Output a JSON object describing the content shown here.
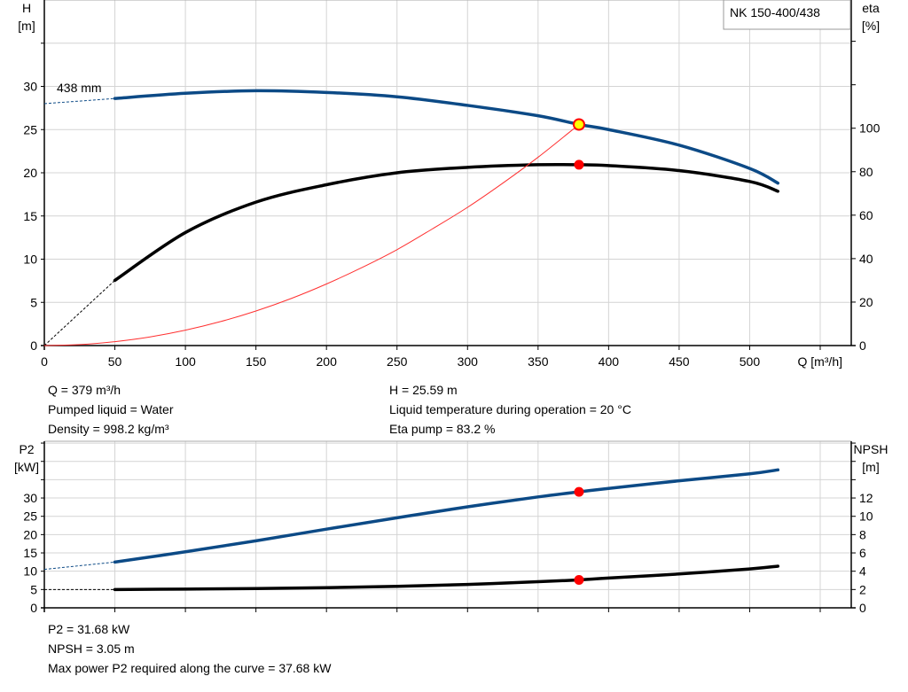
{
  "pump_label": "NK 150-400/438",
  "impeller_label": "438 mm",
  "colors": {
    "head": "#0c4a86",
    "eta": "#000000",
    "system": "#ff3030",
    "grid": "#d4d4d4",
    "duty_point": "#ff0000",
    "duty_highlight": "#ffff00"
  },
  "chart_data": [
    {
      "type": "line",
      "xlabel": "Q [m³/h]",
      "x_ticks": [
        0,
        50,
        100,
        150,
        200,
        250,
        300,
        350,
        400,
        450,
        500
      ],
      "xlim": [
        0,
        572
      ],
      "left_axis": {
        "label": "H",
        "unit": "[m]",
        "ticks": [
          0,
          5,
          10,
          15,
          20,
          25,
          30
        ],
        "ylim": [
          0,
          40
        ]
      },
      "right_axis": {
        "label": "eta",
        "unit": "[%]",
        "ticks": [
          0,
          20,
          40,
          60,
          80,
          100
        ],
        "ylim": [
          0,
          159
        ]
      },
      "grid": true,
      "series": [
        {
          "axis": "left",
          "color": "#0c4a86",
          "x": [
            50,
            100,
            150,
            200,
            250,
            300,
            350,
            379,
            400,
            450,
            500,
            520
          ],
          "y": [
            28.6,
            29.2,
            29.5,
            29.3,
            28.8,
            27.8,
            26.6,
            25.59,
            25.0,
            23.2,
            20.5,
            18.8
          ],
          "extrapolated": {
            "x": [
              0,
              50
            ],
            "y": [
              28.0,
              28.6
            ]
          }
        },
        {
          "axis": "right",
          "color": "#000000",
          "x": [
            50,
            100,
            150,
            200,
            250,
            300,
            350,
            379,
            400,
            450,
            500,
            520
          ],
          "y": [
            30,
            52,
            66,
            74,
            79.5,
            82,
            83.2,
            83.2,
            82.8,
            80.5,
            75.5,
            71
          ],
          "extrapolated": {
            "x": [
              0,
              50
            ],
            "y": [
              0,
              30
            ]
          }
        },
        {
          "axis": "left",
          "color": "#ff3030",
          "x": [
            0,
            25,
            50,
            75,
            100,
            125,
            150,
            175,
            200,
            225,
            250,
            275,
            300,
            325,
            350,
            379
          ],
          "y": [
            0,
            0.11,
            0.45,
            1.0,
            1.78,
            2.78,
            4.0,
            5.45,
            7.13,
            9.02,
            11.1,
            13.5,
            16.0,
            18.8,
            21.8,
            25.59
          ]
        }
      ],
      "duty_point": {
        "Q": 379,
        "H": 25.59,
        "eta": 83.2
      }
    },
    {
      "type": "line",
      "x_ticks": [
        0,
        50,
        100,
        150,
        200,
        250,
        300,
        350,
        400,
        450,
        500
      ],
      "xlim": [
        0,
        572
      ],
      "left_axis": {
        "label": "P2",
        "unit": "[kW]",
        "ticks": [
          0,
          5,
          10,
          15,
          20,
          25,
          30
        ],
        "ylim": [
          0,
          45.5
        ]
      },
      "right_axis": {
        "label": "NPSH",
        "unit": "[m]",
        "ticks": [
          0,
          2,
          4,
          6,
          8,
          10,
          12
        ],
        "ylim": [
          0,
          18.2
        ]
      },
      "grid": true,
      "series": [
        {
          "axis": "left",
          "color": "#0c4a86",
          "x": [
            50,
            100,
            150,
            200,
            250,
            300,
            350,
            379,
            400,
            450,
            500,
            520
          ],
          "y": [
            12.5,
            15.3,
            18.3,
            21.5,
            24.6,
            27.6,
            30.3,
            31.68,
            32.6,
            34.7,
            36.6,
            37.68
          ],
          "extrapolated": {
            "x": [
              0,
              50
            ],
            "y": [
              10.5,
              12.5
            ]
          }
        },
        {
          "axis": "right",
          "color": "#000000",
          "x": [
            50,
            100,
            150,
            200,
            250,
            300,
            350,
            379,
            400,
            450,
            500,
            520
          ],
          "y": [
            2.0,
            2.05,
            2.1,
            2.2,
            2.35,
            2.55,
            2.85,
            3.05,
            3.25,
            3.7,
            4.25,
            4.55
          ],
          "extrapolated": {
            "x": [
              0,
              50
            ],
            "y": [
              2.0,
              2.0
            ]
          }
        }
      ],
      "duty_point": {
        "Q": 379,
        "P2": 31.68,
        "NPSH": 3.05
      }
    }
  ],
  "info_top": {
    "q": "Q = 379 m³/h",
    "liquid": "Pumped liquid = Water",
    "density": "Density = 998.2 kg/m³",
    "h": "H = 25.59 m",
    "temp": "Liquid temperature during operation = 20 °C",
    "eta": "Eta pump = 83.2 %"
  },
  "info_bottom": {
    "p2": "P2 = 31.68 kW",
    "npsh": "NPSH = 3.05 m",
    "maxp2": "Max power P2 required along the curve = 37.68 kW"
  }
}
